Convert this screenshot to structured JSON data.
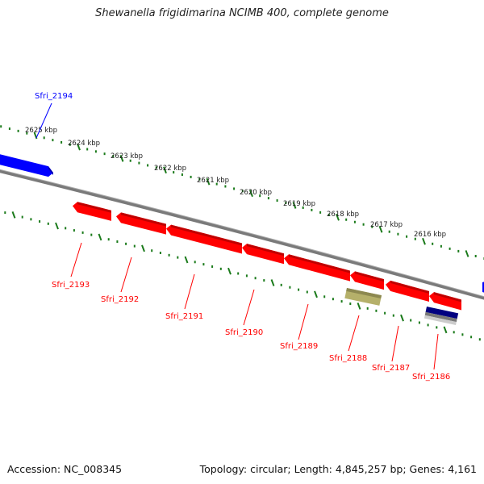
{
  "title": "Shewanella frigidimarina NCIMB 400, complete genome",
  "footer": {
    "accession": "Accession: NC_008345",
    "topology": "Topology: circular; Length: 4,845,257 bp; Genes: 4,161"
  },
  "colors": {
    "forward_gene": "#0000ff",
    "reverse_gene": "#ff0000",
    "backbone": "#808080",
    "ticks": "#1a7a1a",
    "olive_feature": "#b5b06a",
    "navy_feature": "#000080"
  },
  "ruler_labels": [
    "2625 kbp",
    "2624 kbp",
    "2623 kbp",
    "2622 kbp",
    "2621 kbp",
    "2620 kbp",
    "2619 kbp",
    "2618 kbp",
    "2617 kbp",
    "2616 kbp"
  ],
  "forward_genes": [
    "Sfri_2194"
  ],
  "reverse_genes": [
    "Sfri_2193",
    "Sfri_2192",
    "Sfri_2191",
    "Sfri_2190",
    "Sfri_2189",
    "Sfri_2188",
    "Sfri_2187",
    "Sfri_2186"
  ]
}
